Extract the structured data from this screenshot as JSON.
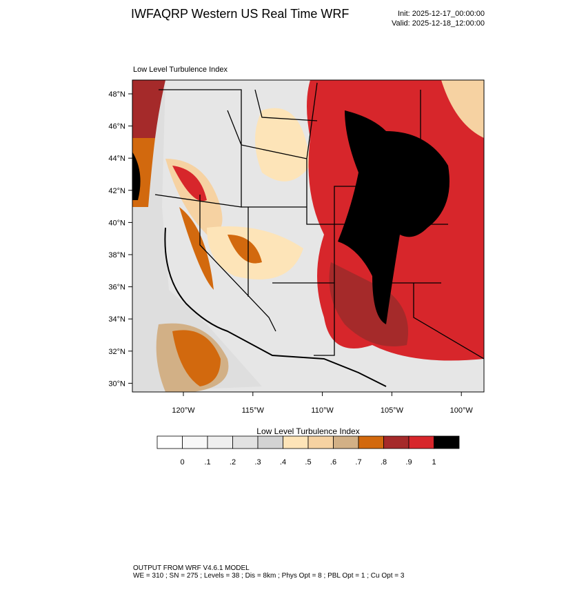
{
  "header": {
    "title": "IWFAQRP Western US Real Time WRF",
    "init": "Init: 2025-12-17_00:00:00",
    "valid": "Valid: 2025-12-18_12:00:00"
  },
  "map": {
    "subtitle": "Low Level Turbulence Index",
    "lat_labels": [
      "48°N",
      "46°N",
      "44°N",
      "42°N",
      "40°N",
      "38°N",
      "36°N",
      "34°N",
      "32°N",
      "30°N"
    ],
    "lon_labels": [
      "120°W",
      "115°W",
      "110°W",
      "105°W",
      "100°W"
    ]
  },
  "colorbar": {
    "title": "Low Level Turbulence Index",
    "colors": [
      "#ffffff",
      "#f8f8f8",
      "#efefef",
      "#e2e2e2",
      "#d3d3d3",
      "#fde4b8",
      "#f6d2a2",
      "#d2b086",
      "#d2690e",
      "#a52a2a",
      "#d7262b",
      "#000000"
    ],
    "labels": [
      "0",
      ".1",
      ".2",
      ".3",
      ".4",
      ".5",
      ".6",
      ".7",
      ".8",
      ".9",
      "1"
    ]
  },
  "footer": {
    "line1": "OUTPUT FROM WRF V4.6.1 MODEL",
    "line2": "WE = 310 ; SN = 275 ; Levels = 38 ; Dis = 8km ; Phys Opt = 8 ; PBL Opt = 1 ; Cu Opt = 3"
  }
}
